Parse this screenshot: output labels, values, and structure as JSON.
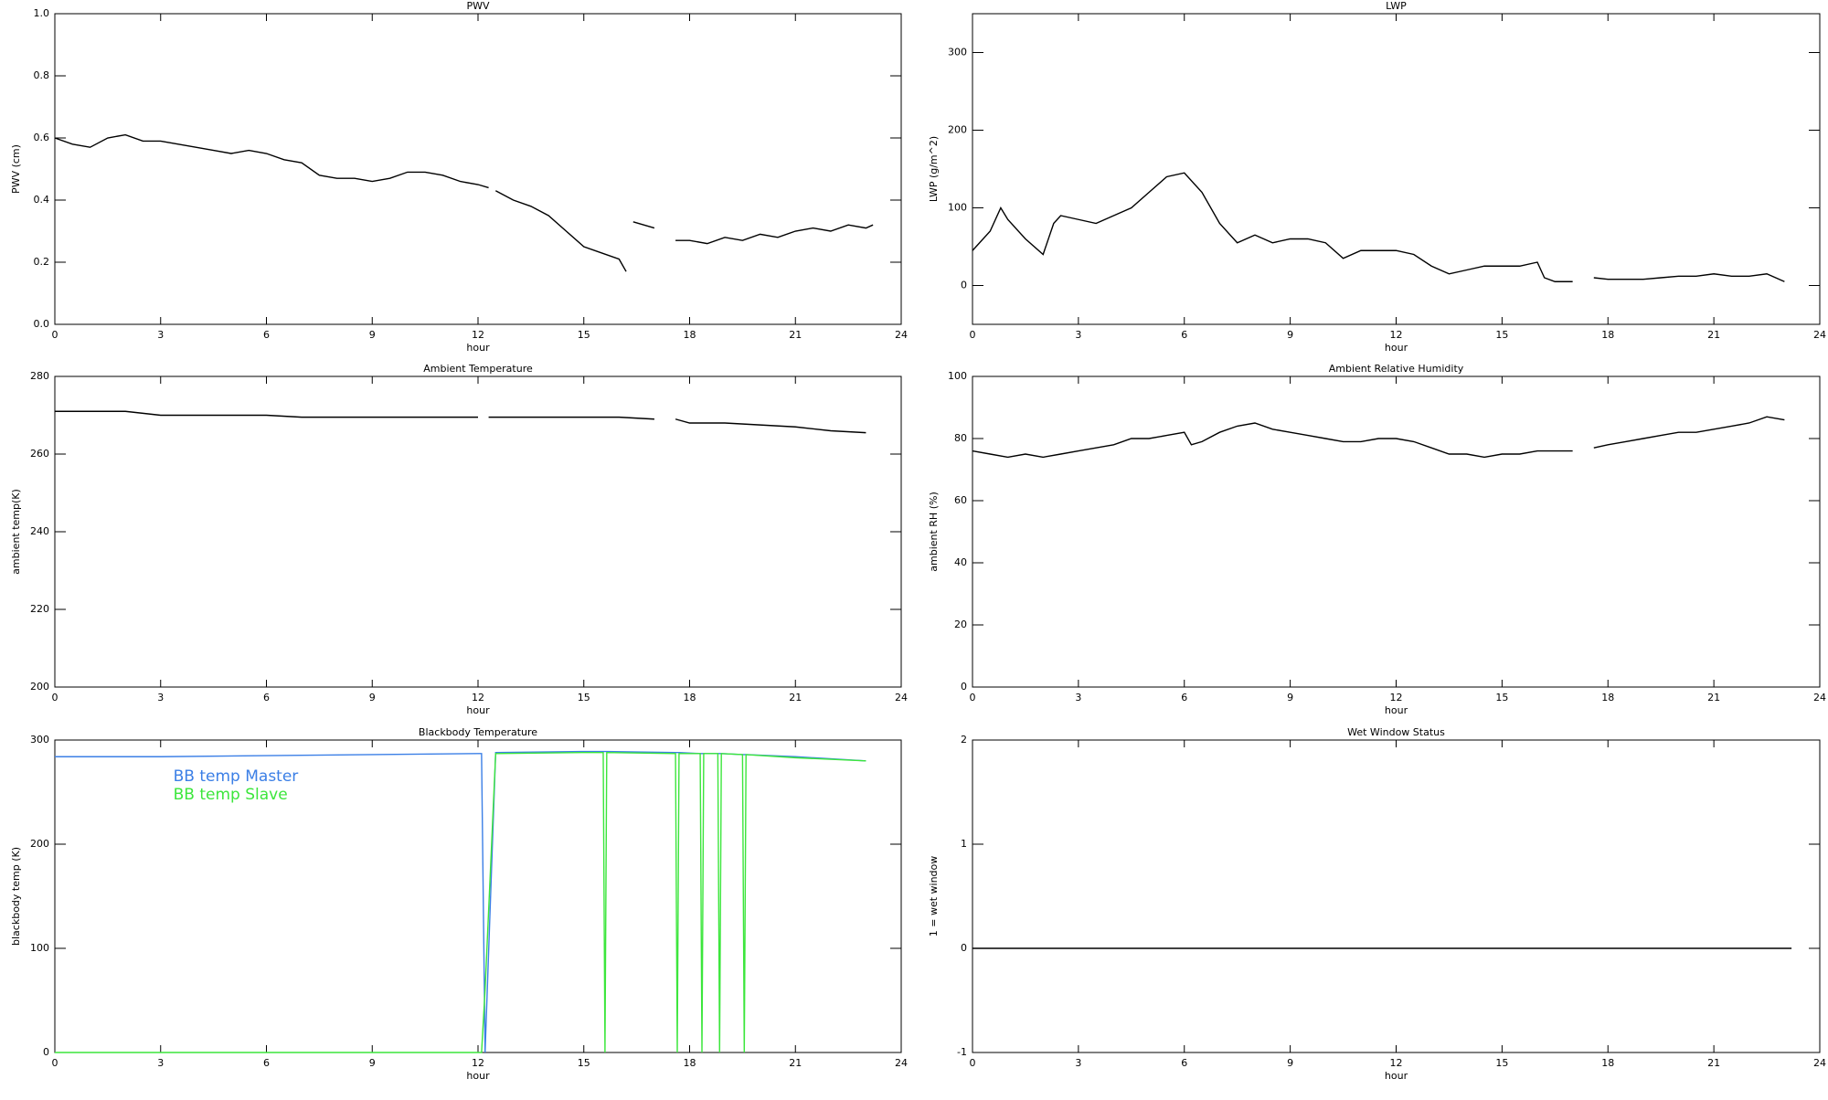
{
  "chart_data": [
    {
      "type": "line",
      "title": "PWV",
      "xlabel": "hour",
      "ylabel": "PWV (cm)",
      "xlim": [
        0,
        24
      ],
      "xticks": [
        0,
        3,
        6,
        9,
        12,
        15,
        18,
        21,
        24
      ],
      "ylim": [
        0,
        1
      ],
      "yticks": [
        {
          "value": 0,
          "label": "0.0"
        },
        0.2,
        0.4,
        0.6,
        0.8,
        {
          "value": 1,
          "label": "1.0"
        }
      ],
      "color": "#000000",
      "x": [
        0,
        0.5,
        1,
        1.5,
        2,
        2.5,
        3,
        3.5,
        4,
        4.5,
        5,
        5.5,
        6,
        6.5,
        7,
        7.5,
        8,
        8.5,
        9,
        9.5,
        10,
        10.5,
        11,
        11.5,
        12,
        12.3,
        12.4,
        12.5,
        13,
        13.5,
        14,
        14.5,
        15,
        15.5,
        16,
        16.2,
        16.3,
        16.4,
        16.7,
        17,
        17.2,
        17.6,
        18,
        18.5,
        19,
        19.5,
        20,
        20.5,
        21,
        21.5,
        22,
        22.5,
        23,
        23.2
      ],
      "values": [
        0.6,
        0.58,
        0.57,
        0.6,
        0.61,
        0.59,
        0.59,
        0.58,
        0.57,
        0.56,
        0.55,
        0.56,
        0.55,
        0.53,
        0.52,
        0.48,
        0.47,
        0.47,
        0.46,
        0.47,
        0.49,
        0.49,
        0.48,
        0.46,
        0.45,
        0.44,
        null,
        0.43,
        0.4,
        0.38,
        0.35,
        0.3,
        0.25,
        0.23,
        0.21,
        0.17,
        null,
        0.33,
        0.32,
        0.31,
        null,
        0.27,
        0.27,
        0.26,
        0.28,
        0.27,
        0.29,
        0.28,
        0.3,
        0.31,
        0.3,
        0.32,
        0.31,
        0.32
      ]
    },
    {
      "type": "line",
      "title": "LWP",
      "xlabel": "hour",
      "ylabel": "LWP (g/m^2)",
      "xlim": [
        0,
        24
      ],
      "xticks": [
        0,
        3,
        6,
        9,
        12,
        15,
        18,
        21,
        24
      ],
      "ylim": [
        -50,
        350
      ],
      "yticks": [
        0,
        100,
        200,
        300
      ],
      "color": "#000000",
      "x": [
        0,
        0.5,
        0.8,
        1,
        1.5,
        2,
        2.3,
        2.5,
        3,
        3.5,
        4,
        4.5,
        5,
        5.5,
        6,
        6.5,
        7,
        7.5,
        8,
        8.5,
        9,
        9.5,
        10,
        10.5,
        11,
        11.5,
        12,
        12.5,
        13,
        13.5,
        14,
        14.5,
        15,
        15.5,
        16,
        16.2,
        16.5,
        17,
        17.2,
        17.6,
        18,
        18.5,
        19,
        19.5,
        20,
        20.5,
        21,
        21.5,
        22,
        22.5,
        23
      ],
      "values": [
        45,
        70,
        100,
        85,
        60,
        40,
        80,
        90,
        85,
        80,
        90,
        100,
        120,
        140,
        145,
        120,
        80,
        55,
        65,
        55,
        60,
        60,
        55,
        35,
        45,
        45,
        45,
        40,
        25,
        15,
        20,
        25,
        25,
        25,
        30,
        10,
        5,
        5,
        null,
        10,
        8,
        8,
        8,
        10,
        12,
        12,
        15,
        12,
        12,
        15,
        5
      ]
    },
    {
      "type": "line",
      "title": "Ambient Temperature",
      "xlabel": "hour",
      "ylabel": "ambient temp(K)",
      "xlim": [
        0,
        24
      ],
      "xticks": [
        0,
        3,
        6,
        9,
        12,
        15,
        18,
        21,
        24
      ],
      "ylim": [
        200,
        280
      ],
      "yticks": [
        200,
        220,
        240,
        260,
        280
      ],
      "color": "#000000",
      "x": [
        0,
        1,
        2,
        3,
        4,
        5,
        6,
        7,
        8,
        9,
        10,
        11,
        12,
        12.2,
        12.3,
        13,
        14,
        15,
        16,
        17,
        17.2,
        17.6,
        18,
        19,
        20,
        21,
        22,
        23
      ],
      "values": [
        271,
        271,
        271,
        270,
        270,
        270,
        270,
        269.5,
        269.5,
        269.5,
        269.5,
        269.5,
        269.5,
        null,
        269.5,
        269.5,
        269.5,
        269.5,
        269.5,
        269,
        null,
        269,
        268,
        268,
        267.5,
        267,
        266,
        265.5
      ]
    },
    {
      "type": "line",
      "title": "Ambient Relative Humidity",
      "xlabel": "hour",
      "ylabel": "ambient RH (%)",
      "xlim": [
        0,
        24
      ],
      "xticks": [
        0,
        3,
        6,
        9,
        12,
        15,
        18,
        21,
        24
      ],
      "ylim": [
        0,
        100
      ],
      "yticks": [
        0,
        20,
        40,
        60,
        80,
        100
      ],
      "color": "#000000",
      "x": [
        0,
        0.5,
        1,
        1.5,
        2,
        2.5,
        3,
        3.5,
        4,
        4.5,
        5,
        5.5,
        6,
        6.2,
        6.5,
        7,
        7.5,
        8,
        8.5,
        9,
        9.5,
        10,
        10.5,
        11,
        11.5,
        12,
        12.5,
        13,
        13.5,
        14,
        14.5,
        15,
        15.5,
        16,
        16.5,
        17,
        17.2,
        17.6,
        18,
        18.5,
        19,
        19.5,
        20,
        20.5,
        21,
        21.5,
        22,
        22.5,
        23
      ],
      "values": [
        76,
        75,
        74,
        75,
        74,
        75,
        76,
        77,
        78,
        80,
        80,
        81,
        82,
        78,
        79,
        82,
        84,
        85,
        83,
        82,
        81,
        80,
        79,
        79,
        80,
        80,
        79,
        77,
        75,
        75,
        74,
        75,
        75,
        76,
        76,
        76,
        null,
        77,
        78,
        79,
        80,
        81,
        82,
        82,
        83,
        84,
        85,
        87,
        86
      ]
    },
    {
      "type": "line",
      "title": "Blackbody Temperature",
      "xlabel": "hour",
      "ylabel": "blackbody temp (K)",
      "xlim": [
        0,
        24
      ],
      "xticks": [
        0,
        3,
        6,
        9,
        12,
        15,
        18,
        21,
        24
      ],
      "ylim": [
        0,
        300
      ],
      "yticks": [
        0,
        100,
        200,
        300
      ],
      "legend": "upper left",
      "x": [
        0,
        3,
        6,
        9,
        12,
        12.1,
        12.2,
        12.5,
        15,
        15.55,
        15.6,
        15.65,
        17.6,
        17.65,
        17.7,
        18.3,
        18.35,
        18.4,
        18.8,
        18.85,
        18.9,
        19.5,
        19.55,
        19.6,
        21,
        23
      ],
      "series": [
        {
          "name": "BB temp Master",
          "color": "#3b7fe6",
          "values": [
            284,
            284,
            285,
            286,
            287,
            287,
            0,
            288,
            289,
            289,
            289,
            289,
            288,
            288,
            288,
            287,
            287,
            287,
            287,
            287,
            287,
            286,
            286,
            286,
            284,
            280
          ]
        },
        {
          "name": "BB temp Slave",
          "color": "#3ce63c",
          "values": [
            0,
            0,
            0,
            0,
            0,
            0,
            60,
            287,
            288,
            288,
            0,
            288,
            287,
            0,
            287,
            287,
            0,
            287,
            287,
            0,
            287,
            286,
            0,
            286,
            283,
            280
          ]
        }
      ]
    },
    {
      "type": "line",
      "title": "Wet Window Status",
      "xlabel": "hour",
      "ylabel": "1 = wet window",
      "xlim": [
        0,
        24
      ],
      "xticks": [
        0,
        3,
        6,
        9,
        12,
        15,
        18,
        21,
        24
      ],
      "ylim": [
        -1,
        2
      ],
      "yticks": [
        -1,
        0,
        1,
        2
      ],
      "color": "#000000",
      "x": [
        0,
        23.2
      ],
      "values": [
        0,
        0
      ]
    }
  ]
}
